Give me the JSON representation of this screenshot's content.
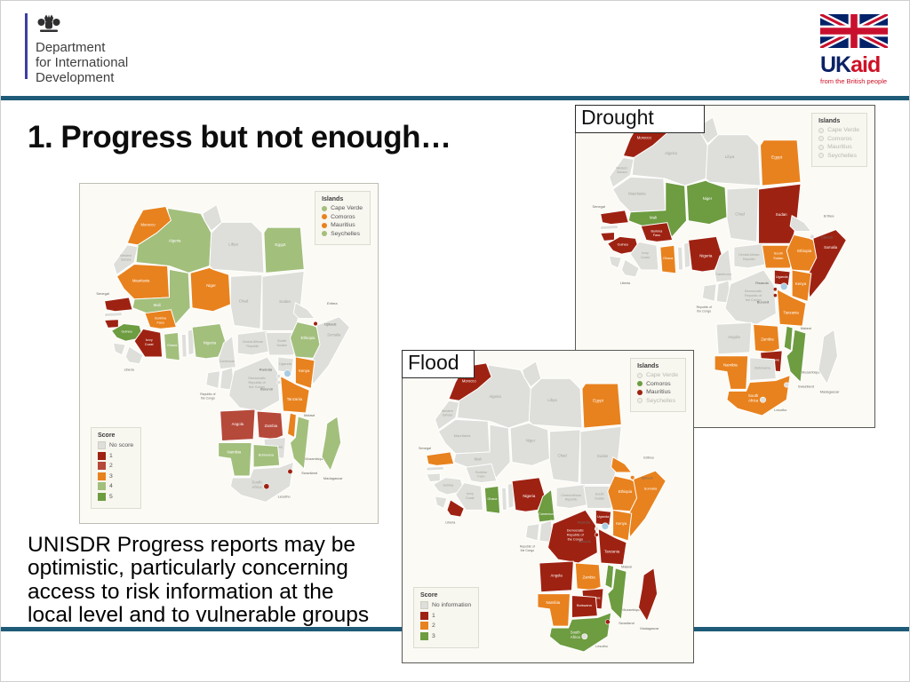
{
  "header": {
    "dfid": {
      "lines": [
        "Department",
        "for International",
        "Development"
      ]
    },
    "ukaid": {
      "uk": "UK",
      "aid": "aid",
      "tagline": "from the British people"
    }
  },
  "title": "1. Progress but not enough…",
  "body_lines": [
    "UNISDR Progress reports may be",
    "optimistic, particularly concerning",
    "access to risk information at the",
    "local level and to vulnerable groups"
  ],
  "accent": {
    "divider_color": "#1E5B78",
    "flag_blue": "#012169",
    "flag_red": "#C8102E"
  },
  "palette": {
    "no_data": "#DEDEDA",
    "red": "#9E2212",
    "brick": "#B5493A",
    "orange": "#E8821E",
    "light_green": "#A2BF7C",
    "green": "#6D9C41",
    "water": "#A9CCE3"
  },
  "country_names": {
    "morocco": "Morocco",
    "westsahara": "Western\nSahara",
    "mauritania": "Mauritania",
    "senegal": "Senegal",
    "guinea": "Guinea",
    "liberia": "Liberia",
    "ivorycoast": "Ivory\nCoast",
    "ghana": "Ghana",
    "burkina": "Burkina\nFaso",
    "mali": "Mali",
    "algeria": "Algeria",
    "libya": "Libya",
    "egypt": "Egypt",
    "niger": "Niger",
    "chad": "Chad",
    "sudan": "Sudan",
    "eritrea": "Eritrea",
    "djibouti": "Djibouti",
    "ethiopia": "Ethiopia",
    "somalia": "Somalia",
    "nigeria": "Nigeria",
    "cameroon": "Cameroon",
    "car": "Central African\nRepublic",
    "southsudan": "South\nSudan",
    "uganda": "Uganda",
    "kenya": "Kenya",
    "drc": "Democratic\nRepublic of\nthe Congo",
    "congo": "Republic of\nthe Congo",
    "rwanda": "Rwanda",
    "burundi": "Burundi",
    "tanzania": "Tanzania",
    "angola": "Angola",
    "zambia": "Zambia",
    "malawi": "Malawi",
    "mozambique": "Mozambique",
    "zimbabwe": "Zimbabwe",
    "namibia": "Namibia",
    "botswana": "Botswana",
    "southafrica": "South\nAfrica",
    "madagascar": "Madagascar",
    "lesotho": "Lesotho",
    "swaziland": "Swaziland"
  },
  "maps": [
    {
      "id": "unisdr-progress",
      "label": "",
      "islands_legend": {
        "title": "Islands",
        "items": [
          {
            "label": "Cape Verde",
            "color": "light_green"
          },
          {
            "label": "Comoros",
            "color": "orange"
          },
          {
            "label": "Mauritius",
            "color": "orange"
          },
          {
            "label": "Seychelles",
            "color": "light_green"
          }
        ]
      },
      "score_legend": {
        "title": "Score",
        "items": [
          {
            "label": "No score",
            "color": "no_data"
          },
          {
            "label": "1",
            "color": "red"
          },
          {
            "label": "2",
            "color": "brick"
          },
          {
            "label": "3",
            "color": "orange"
          },
          {
            "label": "4",
            "color": "light_green"
          },
          {
            "label": "5",
            "color": "green"
          }
        ]
      },
      "countries": {
        "morocco": "orange",
        "mauritania": "orange",
        "senegal": "red",
        "guineabissau": "red",
        "guinea": "green",
        "ivorycoast": "red",
        "ghana": "light_green",
        "burkina": "orange",
        "mali": "light_green",
        "algeria": "light_green",
        "egypt": "light_green",
        "niger": "orange",
        "djibouti": "red",
        "ethiopia": "light_green",
        "nigeria": "light_green",
        "kenya": "orange",
        "tanzania": "orange",
        "angola": "brick",
        "zambia": "brick",
        "malawi": "orange",
        "mozambique": "light_green",
        "namibia": "light_green",
        "botswana": "light_green",
        "madagascar": "light_green",
        "lesotho": "red",
        "swaziland": "red"
      }
    },
    {
      "id": "drought",
      "label": "Drought",
      "islands_legend": {
        "title": "Islands",
        "items": [
          {
            "label": "Cape Verde",
            "color": null
          },
          {
            "label": "Comoros",
            "color": null
          },
          {
            "label": "Mauritius",
            "color": null
          },
          {
            "label": "Seychelles",
            "color": null
          }
        ]
      },
      "score_legend": null,
      "countries": {
        "morocco": "red",
        "senegal": "red",
        "guineabissau": "red",
        "guinea": "red",
        "mali": "green",
        "niger": "green",
        "burkina": "red",
        "ghana": "orange",
        "nigeria": "red",
        "egypt": "orange",
        "sudan": "red",
        "southsudan": "orange",
        "ethiopia": "orange",
        "somalia": "red",
        "uganda": "red",
        "kenya": "orange",
        "rwanda": "red",
        "burundi": "red",
        "tanzania": "orange",
        "zambia": "orange",
        "malawi": "green",
        "mozambique": "green",
        "zimbabwe": "red",
        "namibia": "orange",
        "southafrica": "orange"
      }
    },
    {
      "id": "flood",
      "label": "Flood",
      "islands_legend": {
        "title": "Islands",
        "items": [
          {
            "label": "Cape Verde",
            "color": null
          },
          {
            "label": "Comoros",
            "color": "green"
          },
          {
            "label": "Mauritius",
            "color": "red"
          },
          {
            "label": "Seychelles",
            "color": null
          }
        ]
      },
      "score_legend": {
        "title": "Score",
        "items": [
          {
            "label": "No information",
            "color": "no_data"
          },
          {
            "label": "1",
            "color": "red"
          },
          {
            "label": "2",
            "color": "orange"
          },
          {
            "label": "3",
            "color": "green"
          }
        ]
      },
      "countries": {
        "morocco": "red",
        "senegal": "orange",
        "liberia": "red",
        "ghana": "green",
        "cameroon": "green",
        "nigeria": "red",
        "egypt": "orange",
        "eritrea": "orange",
        "djibouti": "orange",
        "ethiopia": "orange",
        "somalia": "orange",
        "uganda": "red",
        "kenya": "orange",
        "drc": "red",
        "burundi": "red",
        "tanzania": "red",
        "angola": "red",
        "zambia": "orange",
        "malawi": "green",
        "mozambique": "green",
        "zimbabwe": "red",
        "namibia": "orange",
        "botswana": "red",
        "southafrica": "green",
        "madagascar": "red",
        "swaziland": "red"
      }
    }
  ]
}
